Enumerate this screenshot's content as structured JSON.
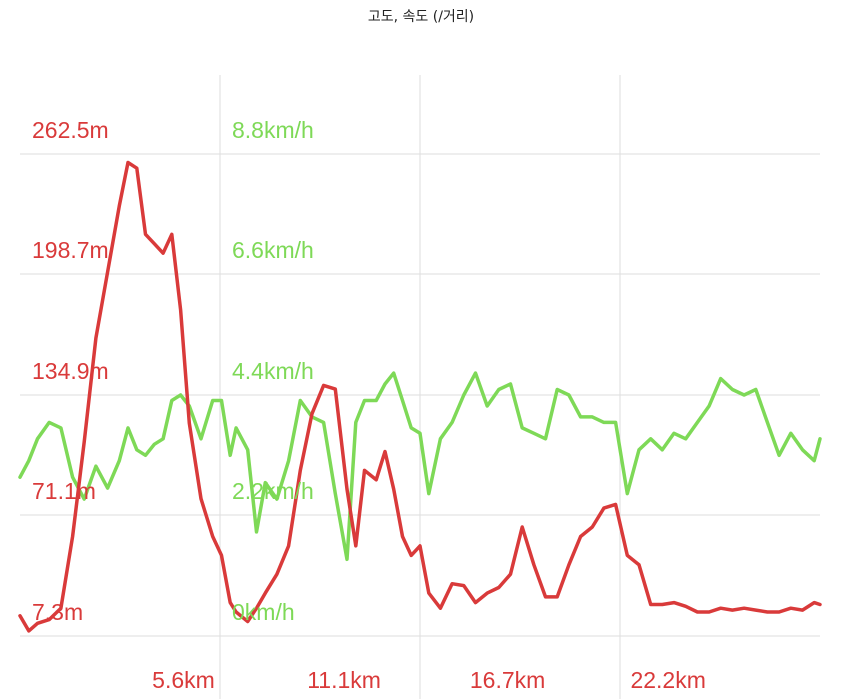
{
  "chart_data": {
    "type": "line",
    "title": "고도, 속도 (/거리)",
    "x_tick_labels": [
      "5.6km",
      "11.1km",
      "16.7km",
      "22.2km"
    ],
    "x_ticks": [
      5.6,
      11.1,
      16.7,
      22.2
    ],
    "xlim": [
      0,
      27.4
    ],
    "grid": true,
    "colors": {
      "elevation": "#d93a3a",
      "speed": "#7ed957",
      "grid": "#dddddd",
      "x_label": "#d93a3a"
    },
    "axes": [
      {
        "series": "elevation",
        "ylim": [
          7.3,
          262.5
        ],
        "tick_labels": [
          "262.5m",
          "198.7m",
          "134.9m",
          "71.1m",
          "7.3m"
        ],
        "tick_values": [
          262.5,
          198.7,
          134.9,
          71.1,
          7.3
        ]
      },
      {
        "series": "speed",
        "ylim": [
          0,
          8.8
        ],
        "tick_labels": [
          "8.8km/h",
          "6.6km/h",
          "4.4km/h",
          "2.2km/h",
          "0km/h"
        ],
        "tick_values": [
          8.8,
          6.6,
          4.4,
          2.2,
          0
        ]
      }
    ],
    "series": [
      {
        "key": "elevation",
        "x": [
          0,
          0.3,
          0.6,
          1.0,
          1.4,
          1.8,
          2.2,
          2.6,
          3.0,
          3.4,
          3.7,
          4.0,
          4.3,
          4.6,
          4.9,
          5.2,
          5.5,
          5.8,
          6.2,
          6.6,
          6.9,
          7.2,
          7.4,
          7.8,
          8.1,
          8.4,
          8.8,
          9.2,
          9.6,
          10.0,
          10.4,
          10.8,
          11.2,
          11.5,
          11.8,
          12.2,
          12.5,
          12.8,
          13.1,
          13.4,
          13.7,
          14.0,
          14.4,
          14.8,
          15.2,
          15.6,
          16.0,
          16.4,
          16.8,
          17.2,
          17.6,
          18.0,
          18.4,
          18.8,
          19.2,
          19.6,
          20.0,
          20.4,
          20.8,
          21.2,
          21.6,
          22.0,
          22.4,
          22.8,
          23.2,
          23.6,
          24.0,
          24.4,
          24.8,
          25.2,
          25.6,
          26.0,
          26.4,
          26.8,
          27.2,
          27.4
        ],
        "values": [
          18,
          10,
          14,
          16,
          22,
          60,
          110,
          165,
          200,
          235,
          258,
          255,
          220,
          215,
          210,
          220,
          180,
          120,
          80,
          60,
          50,
          25,
          20,
          15,
          22,
          30,
          40,
          55,
          95,
          125,
          140,
          138,
          85,
          55,
          95,
          90,
          105,
          85,
          60,
          50,
          55,
          30,
          22,
          35,
          34,
          25,
          30,
          33,
          40,
          65,
          45,
          28,
          28,
          45,
          60,
          65,
          75,
          77,
          50,
          45,
          24,
          24,
          25,
          23,
          20,
          20,
          22,
          21,
          22,
          21,
          20,
          20,
          22,
          21,
          25,
          24
        ]
      },
      {
        "key": "speed",
        "x": [
          0,
          0.3,
          0.6,
          1.0,
          1.4,
          1.8,
          2.2,
          2.6,
          3.0,
          3.4,
          3.7,
          4.0,
          4.3,
          4.6,
          4.9,
          5.2,
          5.5,
          5.8,
          6.2,
          6.6,
          6.9,
          7.2,
          7.4,
          7.8,
          8.1,
          8.4,
          8.8,
          9.2,
          9.6,
          10.0,
          10.4,
          10.8,
          11.2,
          11.5,
          11.8,
          12.2,
          12.5,
          12.8,
          13.1,
          13.4,
          13.7,
          14.0,
          14.4,
          14.8,
          15.2,
          15.6,
          16.0,
          16.4,
          16.8,
          17.2,
          17.6,
          18.0,
          18.4,
          18.8,
          19.2,
          19.6,
          20.0,
          20.4,
          20.8,
          21.2,
          21.6,
          22.0,
          22.4,
          22.8,
          23.2,
          23.6,
          24.0,
          24.4,
          24.8,
          25.2,
          25.6,
          26.0,
          26.4,
          26.8,
          27.2,
          27.4
        ],
        "values": [
          2.9,
          3.2,
          3.6,
          3.9,
          3.8,
          2.9,
          2.5,
          3.1,
          2.7,
          3.2,
          3.8,
          3.4,
          3.3,
          3.5,
          3.6,
          4.3,
          4.4,
          4.2,
          3.6,
          4.3,
          4.3,
          3.3,
          3.8,
          3.4,
          1.9,
          2.8,
          2.5,
          3.2,
          4.3,
          4.0,
          3.9,
          2.6,
          1.4,
          3.9,
          4.3,
          4.3,
          4.6,
          4.8,
          4.3,
          3.8,
          3.7,
          2.6,
          3.6,
          3.9,
          4.4,
          4.8,
          4.2,
          4.5,
          4.6,
          3.8,
          3.7,
          3.6,
          4.5,
          4.4,
          4.0,
          4.0,
          3.9,
          3.9,
          2.6,
          3.4,
          3.6,
          3.4,
          3.7,
          3.6,
          3.9,
          4.2,
          4.7,
          4.5,
          4.4,
          4.5,
          3.9,
          3.3,
          3.7,
          3.4,
          3.2,
          3.6
        ]
      }
    ]
  }
}
